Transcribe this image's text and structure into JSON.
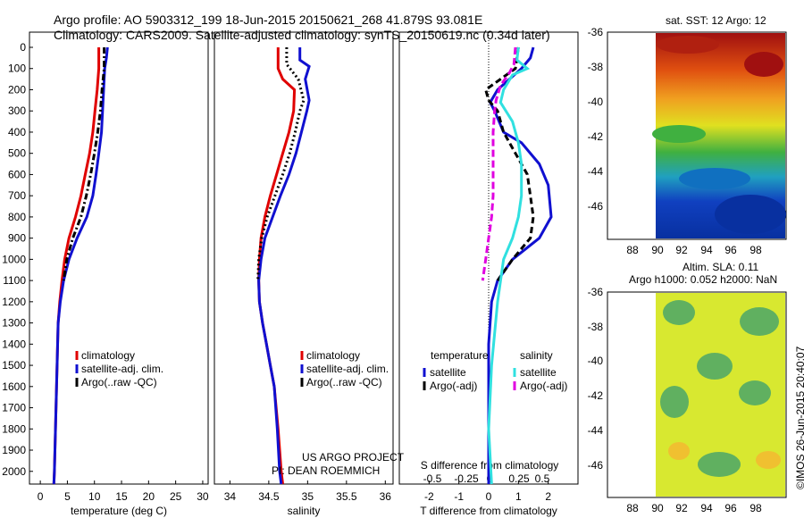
{
  "header": {
    "line1": "Argo profile: AO 5903312_199 18-Jun-2015 20150621_268 41.879S 93.081E",
    "line2": "Climatology: CARS2009. Satellite-adjusted climatology: synTS_20150619.nc (0.34d later)"
  },
  "footer": {
    "project": "US ARGO PROJECT",
    "pi": "PI: DEAN ROEMMICH",
    "imos_stamp": "©IMOS 26-Jun-2015 20:40:07"
  },
  "map_panels": {
    "sst_title": "sat. SST: 12 Argo: 12",
    "sla_title1": "Altim. SLA: 0.11",
    "sla_title2": "Argo h1000: 0.052 h2000: NaN",
    "y_ticks": [
      "-36",
      "-38",
      "-40",
      "-42",
      "-44",
      "-46"
    ],
    "x_ticks": [
      "88",
      "90",
      "92",
      "94",
      "96",
      "98"
    ],
    "colors": {
      "sst_warm": "#a01010",
      "sst_mid": "#f0d020",
      "sst_cool": "#1040c0",
      "sla_base": "#d8e830",
      "sla_blob": "#60b060"
    }
  },
  "chart_data": [
    {
      "type": "line",
      "xlabel": "temperature (deg C)",
      "ylabel": "",
      "xlim": [
        -2,
        31
      ],
      "ylim": [
        2060,
        0
      ],
      "x_ticks": [
        "0",
        "5",
        "10",
        "15",
        "20",
        "25",
        "30"
      ],
      "y_ticks": [
        "0",
        "100",
        "200",
        "300",
        "400",
        "500",
        "600",
        "700",
        "800",
        "900",
        "1000",
        "1100",
        "1200",
        "1300",
        "1400",
        "1500",
        "1600",
        "1700",
        "1800",
        "1900",
        "2000"
      ],
      "legend": [
        "climatology",
        "satellite-adj. clim.",
        "Argo(..raw -QC)"
      ],
      "legend_position": "lower-right",
      "series": [
        {
          "name": "climatology",
          "color": "#e00000",
          "dash": "",
          "points": [
            [
              10.8,
              0
            ],
            [
              10.8,
              100
            ],
            [
              10.5,
              200
            ],
            [
              10.1,
              300
            ],
            [
              9.7,
              400
            ],
            [
              9.1,
              500
            ],
            [
              8.3,
              600
            ],
            [
              7.5,
              700
            ],
            [
              6.5,
              800
            ],
            [
              5.3,
              900
            ],
            [
              4.5,
              1000
            ],
            [
              4.0,
              1100
            ],
            [
              3.6,
              1200
            ],
            [
              3.3,
              1300
            ],
            [
              3.2,
              1400
            ],
            [
              3.0,
              1600
            ],
            [
              2.8,
              1800
            ],
            [
              2.6,
              2000
            ],
            [
              2.5,
              2060
            ]
          ]
        },
        {
          "name": "satellite-adj. clim.",
          "color": "#1010d0",
          "dash": "",
          "points": [
            [
              12.4,
              0
            ],
            [
              12.2,
              50
            ],
            [
              11.9,
              100
            ],
            [
              11.7,
              200
            ],
            [
              11.5,
              300
            ],
            [
              11.3,
              400
            ],
            [
              10.8,
              500
            ],
            [
              10.3,
              600
            ],
            [
              9.7,
              700
            ],
            [
              8.6,
              800
            ],
            [
              6.8,
              900
            ],
            [
              5.3,
              1000
            ],
            [
              4.3,
              1100
            ],
            [
              3.7,
              1200
            ],
            [
              3.3,
              1300
            ],
            [
              3.2,
              1400
            ],
            [
              3.0,
              1600
            ],
            [
              2.8,
              1800
            ],
            [
              2.6,
              2000
            ],
            [
              2.5,
              2060
            ]
          ]
        },
        {
          "name": "Argo(..raw -QC)",
          "color": "#000000",
          "dash": "7,3,2,3",
          "points": [
            [
              11.8,
              0
            ],
            [
              11.8,
              100
            ],
            [
              11.4,
              200
            ],
            [
              11.1,
              300
            ],
            [
              10.6,
              400
            ],
            [
              10.0,
              500
            ],
            [
              9.3,
              600
            ],
            [
              8.5,
              700
            ],
            [
              7.5,
              800
            ],
            [
              6.0,
              900
            ],
            [
              4.9,
              1000
            ],
            [
              4.3,
              1100
            ]
          ]
        }
      ]
    },
    {
      "type": "line",
      "xlabel": "salinity",
      "ylabel": "",
      "xlim": [
        33.8,
        36.1
      ],
      "ylim": [
        2060,
        0
      ],
      "x_ticks": [
        "34",
        "34.5",
        "35",
        "35.5",
        "36"
      ],
      "legend": [
        "climatology",
        "satellite-adj. clim.",
        "Argo(..raw -QC)"
      ],
      "legend_position": "lower-right",
      "series": [
        {
          "name": "climatology",
          "color": "#e00000",
          "dash": "",
          "points": [
            [
              34.62,
              0
            ],
            [
              34.62,
              100
            ],
            [
              34.68,
              150
            ],
            [
              34.83,
              200
            ],
            [
              34.82,
              300
            ],
            [
              34.76,
              400
            ],
            [
              34.68,
              500
            ],
            [
              34.6,
              600
            ],
            [
              34.52,
              700
            ],
            [
              34.45,
              800
            ],
            [
              34.4,
              900
            ],
            [
              34.38,
              1000
            ],
            [
              34.37,
              1100
            ],
            [
              34.38,
              1200
            ],
            [
              34.42,
              1300
            ],
            [
              34.47,
              1400
            ],
            [
              34.52,
              1500
            ],
            [
              34.57,
              1600
            ],
            [
              34.62,
              1800
            ],
            [
              34.66,
              2000
            ],
            [
              34.68,
              2060
            ]
          ]
        },
        {
          "name": "satellite-adj. clim.",
          "color": "#1010d0",
          "dash": "",
          "points": [
            [
              34.9,
              0
            ],
            [
              34.9,
              60
            ],
            [
              35.02,
              90
            ],
            [
              34.97,
              150
            ],
            [
              35.02,
              250
            ],
            [
              34.99,
              300
            ],
            [
              34.92,
              400
            ],
            [
              34.85,
              500
            ],
            [
              34.76,
              600
            ],
            [
              34.65,
              700
            ],
            [
              34.55,
              800
            ],
            [
              34.45,
              900
            ],
            [
              34.4,
              1000
            ],
            [
              34.37,
              1100
            ],
            [
              34.38,
              1200
            ],
            [
              34.42,
              1300
            ],
            [
              34.47,
              1400
            ],
            [
              34.52,
              1500
            ],
            [
              34.57,
              1600
            ],
            [
              34.61,
              1800
            ],
            [
              34.64,
              2000
            ],
            [
              34.66,
              2060
            ]
          ]
        },
        {
          "name": "Argo(..raw -QC)",
          "color": "#000000",
          "dash": "2,3",
          "points": [
            [
              34.73,
              0
            ],
            [
              34.73,
              80
            ],
            [
              34.88,
              150
            ],
            [
              34.95,
              250
            ],
            [
              34.9,
              300
            ],
            [
              34.84,
              400
            ],
            [
              34.77,
              500
            ],
            [
              34.68,
              600
            ],
            [
              34.58,
              700
            ],
            [
              34.48,
              800
            ],
            [
              34.41,
              900
            ],
            [
              34.37,
              1000
            ],
            [
              34.36,
              1100
            ]
          ]
        }
      ]
    },
    {
      "type": "line",
      "xlabel": "T difference from climatology",
      "top_axis_label": "S difference from climatology",
      "ylabel": "",
      "xlim": [
        -3,
        3
      ],
      "ylim": [
        2060,
        0
      ],
      "x_ticks": [
        "-2",
        "-1",
        "0",
        "1",
        "2"
      ],
      "s_ticks": [
        "-0.5",
        "-0.25",
        "0",
        "0.25",
        "0.5"
      ],
      "legend_headers": [
        "temperature",
        "salinity"
      ],
      "legend": [
        "satellite",
        "Argo(-adj)",
        "satellite",
        "Argo(-adj)"
      ],
      "legend_position": "lower-right",
      "series": [
        {
          "name": "satellite",
          "color": "#1010d0",
          "dash": "",
          "points": [
            [
              1.5,
              0
            ],
            [
              1.4,
              50
            ],
            [
              1.1,
              100
            ],
            [
              0.7,
              150
            ],
            [
              0.3,
              200
            ],
            [
              0.05,
              260
            ],
            [
              0.2,
              300
            ],
            [
              0.5,
              400
            ],
            [
              1.1,
              450
            ],
            [
              1.7,
              550
            ],
            [
              2.0,
              650
            ],
            [
              2.1,
              800
            ],
            [
              1.7,
              900
            ],
            [
              0.8,
              1000
            ],
            [
              0.3,
              1100
            ],
            [
              0.1,
              1200
            ],
            [
              0.0,
              1400
            ],
            [
              0.0,
              2060
            ]
          ]
        },
        {
          "name": "Argo(-adj)",
          "color": "#000000",
          "dash": "7,4",
          "points": [
            [
              1.0,
              0
            ],
            [
              0.9,
              100
            ],
            [
              0.4,
              150
            ],
            [
              -0.1,
              200
            ],
            [
              0.0,
              250
            ],
            [
              0.3,
              300
            ],
            [
              0.5,
              400
            ],
            [
              0.9,
              500
            ],
            [
              1.3,
              600
            ],
            [
              1.4,
              700
            ],
            [
              1.5,
              800
            ],
            [
              1.4,
              900
            ],
            [
              0.8,
              1000
            ],
            [
              0.3,
              1100
            ]
          ]
        },
        {
          "name": "satellite",
          "color": "#30e0e0",
          "dash": "",
          "points": [
            [
              1.0,
              0
            ],
            [
              0.95,
              60
            ],
            [
              1.3,
              100
            ],
            [
              0.8,
              130
            ],
            [
              0.5,
              200
            ],
            [
              0.4,
              260
            ],
            [
              0.8,
              350
            ],
            [
              1.0,
              450
            ],
            [
              1.1,
              550
            ],
            [
              1.1,
              700
            ],
            [
              1.0,
              800
            ],
            [
              0.8,
              900
            ],
            [
              0.5,
              1000
            ],
            [
              0.3,
              1200
            ],
            [
              0.1,
              1500
            ],
            [
              0.0,
              1800
            ],
            [
              0.1,
              2060
            ]
          ]
        },
        {
          "name": "Argo(-adj)",
          "color": "#e000e0",
          "dash": "8,4",
          "points": [
            [
              0.9,
              0
            ],
            [
              0.85,
              80
            ],
            [
              0.7,
              120
            ],
            [
              0.4,
              180
            ],
            [
              0.25,
              250
            ],
            [
              0.2,
              300
            ],
            [
              0.15,
              400
            ],
            [
              0.15,
              500
            ],
            [
              0.15,
              700
            ],
            [
              0.1,
              800
            ],
            [
              0.0,
              900
            ],
            [
              -0.1,
              1000
            ],
            [
              -0.2,
              1100
            ]
          ]
        }
      ]
    }
  ]
}
